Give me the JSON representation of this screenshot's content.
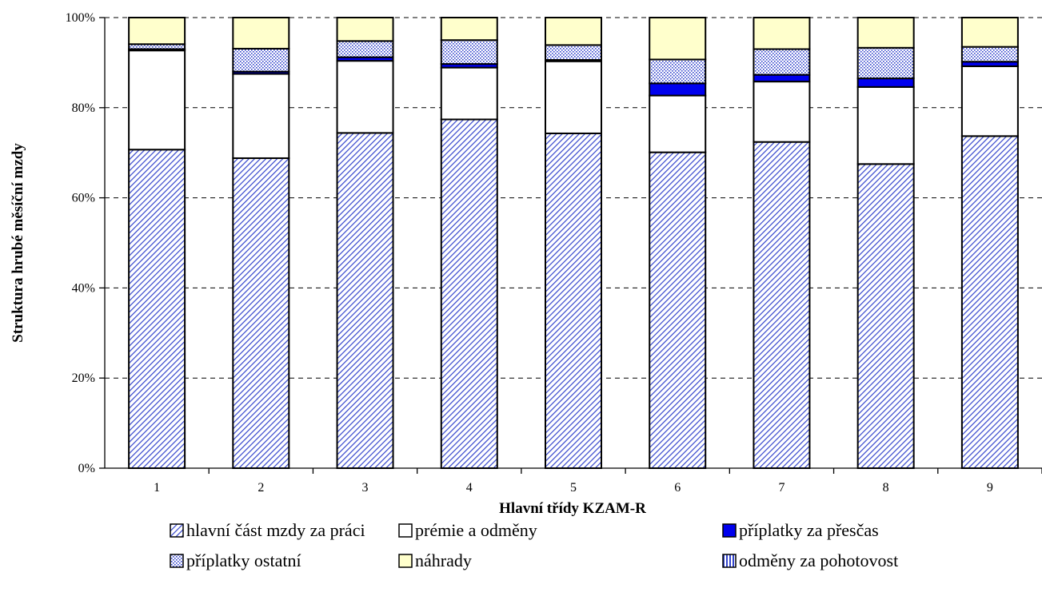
{
  "chart_data": {
    "type": "bar",
    "stacked": true,
    "percent": true,
    "title": "",
    "xlabel": "Hlavní třídy KZAM-R",
    "ylabel": "Struktura hrubé měsíční mzdy",
    "ylim": [
      0,
      100
    ],
    "yticks": [
      "0%",
      "20%",
      "40%",
      "60%",
      "80%",
      "100%"
    ],
    "grid": "horizontal-dashed",
    "legend_position": "bottom",
    "categories": [
      "1",
      "2",
      "3",
      "4",
      "5",
      "6",
      "7",
      "8",
      "9"
    ],
    "series": [
      {
        "name": "hlavní část mzdy za práci",
        "pattern": "diagonal",
        "color": "#3344cc",
        "values": [
          70.7,
          68.8,
          74.4,
          77.4,
          74.3,
          70.1,
          72.4,
          67.5,
          73.7
        ]
      },
      {
        "name": "prémie a odměny",
        "pattern": "solid",
        "color": "#ffffff",
        "values": [
          22.0,
          18.7,
          16.0,
          11.5,
          16.0,
          12.6,
          13.4,
          17.1,
          15.5
        ]
      },
      {
        "name": "příplatky  za přesčas",
        "pattern": "solid",
        "color": "#0000ee",
        "values": [
          0.3,
          0.5,
          0.8,
          0.8,
          0.3,
          2.7,
          1.5,
          1.9,
          1.0
        ]
      },
      {
        "name": "příplatky ostatní",
        "pattern": "dots",
        "color": "#3344cc",
        "values": [
          1.1,
          5.1,
          3.6,
          5.3,
          3.3,
          5.3,
          5.7,
          6.8,
          3.3
        ]
      },
      {
        "name": "náhrady",
        "pattern": "solid",
        "color": "#ffffcc",
        "values": [
          5.9,
          6.9,
          5.2,
          5.0,
          6.1,
          9.3,
          7.0,
          6.7,
          6.5
        ]
      },
      {
        "name": "odměny za pohotovost",
        "pattern": "vertical",
        "color": "#3344cc",
        "values": [
          0,
          0,
          0,
          0,
          0,
          0,
          0,
          0,
          0
        ]
      }
    ]
  }
}
